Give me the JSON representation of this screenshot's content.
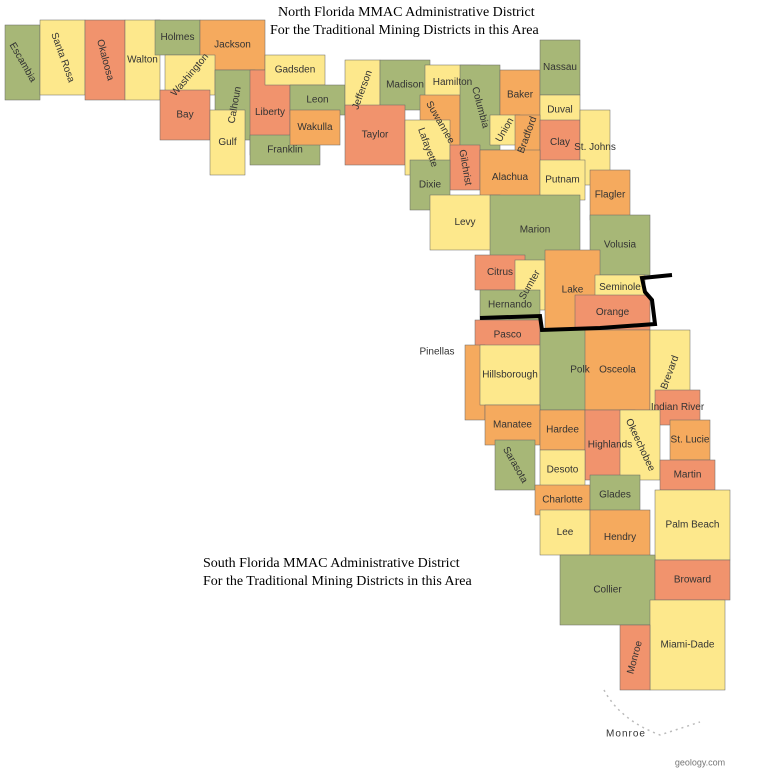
{
  "annotations": {
    "north": [
      "North Florida MMAC Administrative District",
      "For the Traditional Mining Districts in this Area"
    ],
    "south": [
      "South Florida MMAC Administrative District",
      "For the Traditional Mining Districts in this Area"
    ]
  },
  "counties": [
    "Escambia",
    "Santa Rosa",
    "Okaloosa",
    "Walton",
    "Holmes",
    "Jackson",
    "Washington",
    "Bay",
    "Calhoun",
    "Gulf",
    "Liberty",
    "Franklin",
    "Gadsden",
    "Leon",
    "Wakulla",
    "Jefferson",
    "Madison",
    "Taylor",
    "Hamilton",
    "Suwannee",
    "Columbia",
    "Baker",
    "Nassau",
    "Duval",
    "Union",
    "Bradford",
    "Clay",
    "St. Johns",
    "Lafayette",
    "Gilchrist",
    "Dixie",
    "Alachua",
    "Putnam",
    "Flagler",
    "Levy",
    "Marion",
    "Volusia",
    "Citrus",
    "Sumter",
    "Lake",
    "Seminole",
    "Orange",
    "Hernando",
    "Pasco",
    "Pinellas",
    "Hillsborough",
    "Polk",
    "Osceola",
    "Brevard",
    "Indian River",
    "Manatee",
    "Hardee",
    "Highlands",
    "Okeechobee",
    "St. Lucie",
    "Martin",
    "Sarasota",
    "Desoto",
    "Charlotte",
    "Glades",
    "Palm Beach",
    "Lee",
    "Hendry",
    "Collier",
    "Broward",
    "Miami-Dade",
    "Monroe"
  ],
  "keys_label": "Monroe",
  "credit": "geology.com"
}
